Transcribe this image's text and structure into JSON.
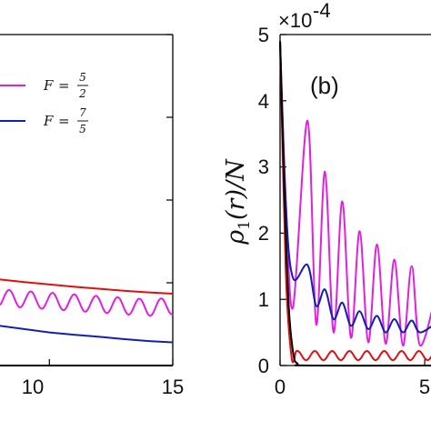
{
  "chart_data": [
    {
      "panel": "left",
      "type": "line",
      "x_ticks": [
        "10",
        "15"
      ],
      "xlim": [
        8,
        15
      ],
      "ylim": [
        0,
        1
      ],
      "legend_placement": "upper-left",
      "series": [
        {
          "name": "F = 5/2",
          "color": "#e020e0",
          "x": [
            8,
            9,
            10,
            11,
            12,
            13,
            14,
            15
          ],
          "y": [
            0.205,
            0.2,
            0.195,
            0.19,
            0.185,
            0.18,
            0.175,
            0.18
          ],
          "oscillation_amplitude": 0.025,
          "oscillation_period": 0.88
        },
        {
          "name": "F = 7/5",
          "color": "#1020b0",
          "x": [
            8,
            9,
            10,
            11,
            12,
            13,
            14,
            15
          ],
          "y": [
            0.12,
            0.11,
            0.1,
            0.093,
            0.087,
            0.08,
            0.074,
            0.07
          ]
        },
        {
          "name": "",
          "color": "#e01010",
          "x": [
            8,
            9,
            10,
            11,
            12,
            13,
            14,
            15
          ],
          "y": [
            0.26,
            0.252,
            0.245,
            0.238,
            0.232,
            0.226,
            0.221,
            0.217
          ]
        },
        {
          "name": "",
          "color": "#000000",
          "x": [
            8,
            15
          ],
          "y": [
            0.0,
            0.0
          ]
        }
      ],
      "legend": [
        {
          "F": "F",
          "eq": "=",
          "num": "5",
          "den": "2",
          "color": "#e020e0"
        },
        {
          "F": "F",
          "eq": "=",
          "num": "7",
          "den": "5",
          "color": "#1020b0"
        }
      ]
    },
    {
      "panel": "right",
      "type": "line",
      "label": "(b)",
      "ylabel": "ρ1(r)/N",
      "ylabel_parts": {
        "rho": "ρ",
        "sub": "1",
        "rest": "(r)/N"
      },
      "exponent": {
        "times": "×10",
        "power": "-4"
      },
      "y_ticks": [
        "0",
        "1",
        "2",
        "3",
        "4",
        "5"
      ],
      "x_ticks": [
        "0",
        "5"
      ],
      "ylim": [
        0,
        5
      ],
      "xlim": [
        0,
        5.5
      ],
      "series": [
        {
          "name": "F = 5/2",
          "color": "#e020e0",
          "x": [
            0,
            0.2,
            0.45,
            0.95,
            1.55,
            2.15,
            2.75,
            3.35,
            3.95,
            4.55,
            5.5
          ],
          "y": [
            4.9,
            2.5,
            0.88,
            3.7,
            2.93,
            2.48,
            2.03,
            1.83,
            1.6,
            1.5,
            1.3
          ],
          "troughs": [
            0.88,
            0.62,
            0.5,
            0.42,
            0.35,
            0.33,
            0.3
          ]
        },
        {
          "name": "F = 7/5",
          "color": "#1020b0",
          "x": [
            0,
            0.2,
            0.45,
            0.95,
            1.55,
            2.15,
            2.75,
            3.35,
            3.95,
            4.55,
            5.5
          ],
          "y": [
            4.9,
            2.4,
            1.32,
            1.52,
            1.15,
            0.95,
            0.82,
            0.75,
            0.7,
            0.68,
            0.68
          ],
          "troughs": [
            1.32,
            0.9,
            0.7,
            0.6,
            0.55,
            0.5,
            0.5
          ]
        },
        {
          "name": "",
          "color": "#e01010",
          "x": [
            0,
            0.2,
            0.4,
            0.6,
            5.5
          ],
          "y": [
            4.9,
            1.4,
            0.12,
            0.15,
            0.15
          ],
          "oscillation_amplitude": 0.07
        },
        {
          "name": "",
          "color": "#000000",
          "x": [
            0,
            0.15,
            0.3,
            0.45,
            0.6,
            1,
            5.5
          ],
          "y": [
            4.9,
            2.6,
            0.9,
            0.2,
            0.03,
            0,
            0
          ]
        }
      ]
    }
  ]
}
